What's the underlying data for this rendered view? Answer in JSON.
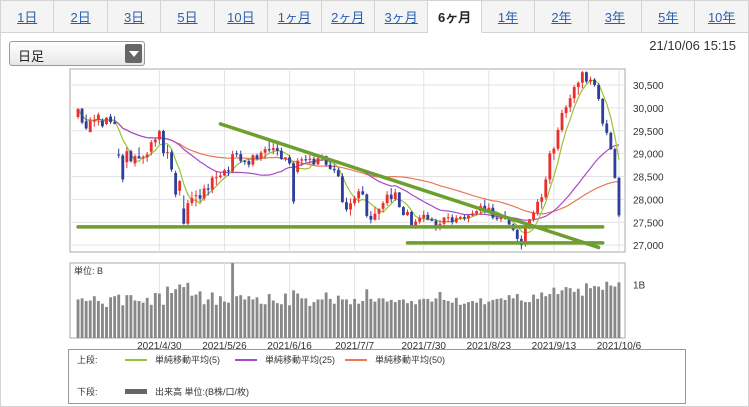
{
  "tabs": [
    {
      "label": "1日",
      "active": false
    },
    {
      "label": "2日",
      "active": false
    },
    {
      "label": "3日",
      "active": false
    },
    {
      "label": "5日",
      "active": false
    },
    {
      "label": "10日",
      "active": false
    },
    {
      "label": "1ヶ月",
      "active": false
    },
    {
      "label": "2ヶ月",
      "active": false
    },
    {
      "label": "3ヶ月",
      "active": false
    },
    {
      "label": "6ヶ月",
      "active": true
    },
    {
      "label": "1年",
      "active": false
    },
    {
      "label": "2年",
      "active": false
    },
    {
      "label": "3年",
      "active": false
    },
    {
      "label": "5年",
      "active": false
    },
    {
      "label": "10年",
      "active": false
    }
  ],
  "period_select": {
    "value": "日足"
  },
  "timestamp": "21/10/06 15:15",
  "colors": {
    "up_candle": "#e83030",
    "down_candle": "#2e3e9a",
    "ma5": "#9bc23a",
    "ma25": "#a64ac9",
    "ma50": "#e8775a",
    "trendline": "#6e9e2e",
    "volume": "#888888",
    "tab_link": "#2a5fb0"
  },
  "chart_data": {
    "type": "candlestick",
    "price_axis": {
      "ticks": [
        "30,500",
        "30,000",
        "29,500",
        "29,000",
        "28,500",
        "28,000",
        "27,500",
        "27,000"
      ],
      "tick_values": [
        30500,
        30000,
        29500,
        29000,
        28500,
        28000,
        27500,
        27000
      ],
      "range": [
        26850,
        30850
      ]
    },
    "x_labels": [
      "2021/4/30",
      "2021/5/26",
      "2021/6/16",
      "2021/7/7",
      "2021/7/30",
      "2021/8/23",
      "2021/9/13",
      "2021/10/6"
    ],
    "volume_axis": {
      "unit_label": "単位: B",
      "tick_label": "1B",
      "tick_value": 1.0,
      "range": [
        0,
        1.4
      ]
    },
    "trendlines": [
      {
        "from": {
          "i": 35,
          "price": 29650
        },
        "to": {
          "i": 128,
          "price": 26950
        }
      },
      {
        "from": {
          "i": 0,
          "price": 27400
        },
        "to": {
          "i": 129,
          "price": 27400
        }
      },
      {
        "from": {
          "i": 81,
          "price": 27050
        },
        "to": {
          "i": 129,
          "price": 27050
        }
      }
    ],
    "candles": [
      [
        29800,
        29985,
        29759,
        29981
      ],
      [
        29981,
        29998,
        29642,
        29681
      ],
      [
        29708,
        29855,
        29520,
        29551
      ],
      [
        29470,
        29795,
        29469,
        29720
      ],
      [
        29701,
        29849,
        29590,
        29735
      ],
      [
        29735,
        29896,
        29616,
        29852
      ],
      [
        29719,
        29769,
        29567,
        29598
      ],
      [
        29647,
        29802,
        29623,
        29785
      ],
      [
        29812,
        29867,
        29650,
        29688
      ],
      [
        29688,
        29816,
        29641,
        29650
      ],
      [
        28981,
        29107,
        28904,
        28960
      ],
      [
        28960,
        28991,
        28375,
        28437
      ],
      [
        28812,
        29138,
        28683,
        29054
      ],
      [
        29054,
        29088,
        28806,
        28834
      ],
      [
        28787,
        28986,
        28719,
        28944
      ],
      [
        28944,
        29140,
        28888,
        28894
      ],
      [
        28894,
        28966,
        28778,
        28923
      ],
      [
        28923,
        29036,
        28821,
        28982
      ],
      [
        29043,
        29296,
        28960,
        29247
      ],
      [
        29247,
        29340,
        29151,
        29307
      ],
      [
        29307,
        29520,
        29211,
        29495
      ],
      [
        29495,
        29521,
        28940,
        29011
      ],
      [
        29011,
        29190,
        28886,
        29031
      ],
      [
        29031,
        29081,
        28602,
        28654
      ],
      [
        28576,
        28629,
        28048,
        28106
      ],
      [
        28189,
        28422,
        28081,
        28400
      ],
      [
        27800,
        28088,
        27450,
        27469
      ],
      [
        27469,
        27987,
        27379,
        27918
      ],
      [
        27918,
        28169,
        27858,
        28029
      ],
      [
        28071,
        28196,
        27847,
        28091
      ],
      [
        28091,
        28227,
        27946,
        28019
      ],
      [
        28019,
        28324,
        27970,
        28241
      ],
      [
        28241,
        28342,
        28085,
        28213
      ],
      [
        28213,
        28519,
        28135,
        28476
      ],
      [
        28476,
        28608,
        28315,
        28485
      ],
      [
        28485,
        28584,
        28458,
        28521
      ],
      [
        28521,
        28669,
        28505,
        28637
      ],
      [
        28637,
        28718,
        28514,
        28611
      ],
      [
        28611,
        29062,
        28589,
        28987
      ],
      [
        29007,
        29066,
        28926,
        28988
      ],
      [
        28988,
        29065,
        28797,
        28841
      ],
      [
        28841,
        28861,
        28758,
        28837
      ],
      [
        28837,
        28877,
        28698,
        28761
      ],
      [
        28761,
        28989,
        28715,
        28964
      ],
      [
        28964,
        28998,
        28863,
        28886
      ],
      [
        28886,
        29061,
        28840,
        29020
      ],
      [
        29020,
        29157,
        28887,
        29097
      ],
      [
        29097,
        29275,
        29031,
        29076
      ],
      [
        29076,
        29246,
        28986,
        29120
      ],
      [
        29120,
        29245,
        28958,
        29063
      ],
      [
        29063,
        29134,
        28866,
        28882
      ],
      [
        28882,
        28920,
        28836,
        28919
      ],
      [
        28919,
        28968,
        28748,
        28788
      ],
      [
        28788,
        28815,
        27900,
        27951
      ],
      [
        28600,
        28902,
        28564,
        28846
      ],
      [
        28846,
        28923,
        28725,
        28876
      ],
      [
        28876,
        28968,
        28810,
        28863
      ],
      [
        28863,
        28968,
        28768,
        28889
      ],
      [
        28889,
        28936,
        28749,
        28766
      ],
      [
        28766,
        28949,
        28745,
        28901
      ],
      [
        28901,
        28986,
        28838,
        28946
      ],
      [
        28946,
        28958,
        28718,
        28758
      ],
      [
        28758,
        28835,
        28646,
        28667
      ],
      [
        28667,
        28767,
        28575,
        28637
      ],
      [
        28637,
        28693,
        28487,
        28505
      ],
      [
        28505,
        28570,
        27926,
        27940
      ],
      [
        27940,
        28039,
        27734,
        27779
      ],
      [
        27779,
        28021,
        27648,
        27915
      ],
      [
        27915,
        28075,
        27856,
        28023
      ],
      [
        28023,
        28231,
        27920,
        28176
      ],
      [
        28176,
        28289,
        28089,
        28109
      ],
      [
        28109,
        28131,
        27601,
        27639
      ],
      [
        27639,
        27742,
        27475,
        27557
      ],
      [
        27557,
        27829,
        27535,
        27686
      ],
      [
        27686,
        27803,
        27549,
        27793
      ],
      [
        27793,
        27963,
        27726,
        27919
      ],
      [
        27919,
        28179,
        27860,
        28103
      ],
      [
        28103,
        28245,
        27927,
        28009
      ],
      [
        28009,
        28232,
        27968,
        28152
      ],
      [
        28152,
        28161,
        27822,
        27830
      ],
      [
        27830,
        27854,
        27647,
        27657
      ],
      [
        27657,
        27777,
        27638,
        27725
      ],
      [
        27725,
        27747,
        27394,
        27424
      ],
      [
        27424,
        27569,
        27357,
        27514
      ],
      [
        27514,
        27658,
        27468,
        27593
      ],
      [
        27593,
        27755,
        27508,
        27662
      ],
      [
        27662,
        27724,
        27547,
        27564
      ],
      [
        27564,
        27609,
        27519,
        27532
      ],
      [
        27532,
        27578,
        27314,
        27373
      ],
      [
        27373,
        27549,
        27325,
        27467
      ],
      [
        27467,
        27616,
        27422,
        27603
      ],
      [
        27603,
        27697,
        27497,
        27609
      ],
      [
        27609,
        27672,
        27449,
        27502
      ],
      [
        27502,
        27656,
        27475,
        27589
      ],
      [
        27589,
        27640,
        27549,
        27614
      ],
      [
        27614,
        27665,
        27535,
        27586
      ],
      [
        27586,
        27661,
        27499,
        27647
      ],
      [
        27647,
        27757,
        27633,
        27692
      ],
      [
        27692,
        27762,
        27653,
        27744
      ],
      [
        27744,
        27917,
        27664,
        27859
      ],
      [
        27859,
        27993,
        27694,
        27777
      ],
      [
        27777,
        27913,
        27718,
        27817
      ],
      [
        27817,
        27898,
        27560,
        27598
      ],
      [
        27598,
        27630,
        27534,
        27569
      ],
      [
        27569,
        27669,
        27507,
        27614
      ],
      [
        27614,
        27745,
        27555,
        27579
      ],
      [
        27579,
        27618,
        27386,
        27453
      ],
      [
        27453,
        27474,
        27303,
        27335
      ],
      [
        27335,
        27351,
        27076,
        27136
      ],
      [
        27136,
        27212,
        26906,
        27002
      ],
      [
        27013,
        27436,
        26966,
        27390
      ],
      [
        27390,
        27572,
        27345,
        27564
      ],
      [
        27564,
        27758,
        27516,
        27706
      ],
      [
        27706,
        28008,
        27645,
        27946
      ],
      [
        27946,
        28122,
        27798,
        28046
      ],
      [
        28046,
        28498,
        28000,
        28436
      ],
      [
        28436,
        29062,
        28339,
        29005
      ],
      [
        29005,
        29149,
        28856,
        29108
      ],
      [
        29108,
        29573,
        29056,
        29517
      ],
      [
        29517,
        29961,
        29465,
        29887
      ],
      [
        29887,
        30064,
        29785,
        30015
      ],
      [
        30015,
        30290,
        29910,
        30210
      ],
      [
        30210,
        30501,
        30107,
        30455
      ],
      [
        30455,
        30578,
        30287,
        30550
      ],
      [
        30550,
        30805,
        30430,
        30780
      ],
      [
        30780,
        30797,
        30538,
        30576
      ],
      [
        30576,
        30681,
        30511,
        30616
      ],
      [
        30616,
        30649,
        30463,
        30500
      ],
      [
        30500,
        30541,
        30153,
        30195
      ]
    ],
    "candles_tail": [
      [
        30195,
        30215,
        29600,
        29658
      ],
      [
        29658,
        29739,
        29401,
        29455
      ],
      [
        29455,
        29476,
        29080,
        29098
      ],
      [
        29098,
        29130,
        28450,
        28470
      ],
      [
        28470,
        28494,
        27610,
        27650
      ]
    ],
    "volumes": [
      0.72,
      0.74,
      0.69,
      0.7,
      0.78,
      0.69,
      0.64,
      0.58,
      0.76,
      0.78,
      0.81,
      0.61,
      0.8,
      0.8,
      0.7,
      0.69,
      0.66,
      0.75,
      0.62,
      0.84,
      0.83,
      0.62,
      0.96,
      0.84,
      0.91,
      1.0,
      0.95,
      1.03,
      0.79,
      0.81,
      0.87,
      0.63,
      0.72,
      0.85,
      0.62,
      0.78,
      0.68,
      0.66,
      1.4,
      0.78,
      0.8,
      0.72,
      0.78,
      0.72,
      0.76,
      0.64,
      0.63,
      0.82,
      0.7,
      0.65,
      0.63,
      0.83,
      0.61,
      0.89,
      0.83,
      0.74,
      0.74,
      0.6,
      0.67,
      0.72,
      0.72,
      0.85,
      0.73,
      0.64,
      0.79,
      0.72,
      0.72,
      0.63,
      0.73,
      0.64,
      0.69,
      0.91,
      0.73,
      0.68,
      0.74,
      0.74,
      0.68,
      0.71,
      0.67,
      0.71,
      0.72,
      0.65,
      0.69,
      0.63,
      0.72,
      0.73,
      0.73,
      0.68,
      0.74,
      0.86,
      0.71,
      0.69,
      0.66,
      0.75,
      0.62,
      0.64,
      0.67,
      0.69,
      0.66,
      0.74,
      0.63,
      0.68,
      0.71,
      0.73,
      0.74,
      0.71,
      0.8,
      0.74,
      0.82,
      0.7,
      0.67,
      0.67,
      0.81,
      0.73,
      0.85,
      0.78,
      0.82,
      0.94,
      0.82,
      0.89,
      0.95,
      0.93,
      0.86,
      0.92,
      0.79,
      1.02,
      0.93,
      0.97,
      0.96,
      0.9,
      1.05,
      0.98,
      0.96,
      1.04
    ]
  },
  "legend": {
    "upper_label": "上段:",
    "lower_label": "下段:",
    "items": [
      {
        "name": "単純移動平均(5)",
        "color": "#9bc23a"
      },
      {
        "name": "単純移動平均(25)",
        "color": "#a64ac9"
      },
      {
        "name": "単純移動平均(50)",
        "color": "#e8775a"
      }
    ],
    "volume_item": {
      "name": "出来高 単位:(B株/口/枚)",
      "color": "#666666"
    }
  }
}
